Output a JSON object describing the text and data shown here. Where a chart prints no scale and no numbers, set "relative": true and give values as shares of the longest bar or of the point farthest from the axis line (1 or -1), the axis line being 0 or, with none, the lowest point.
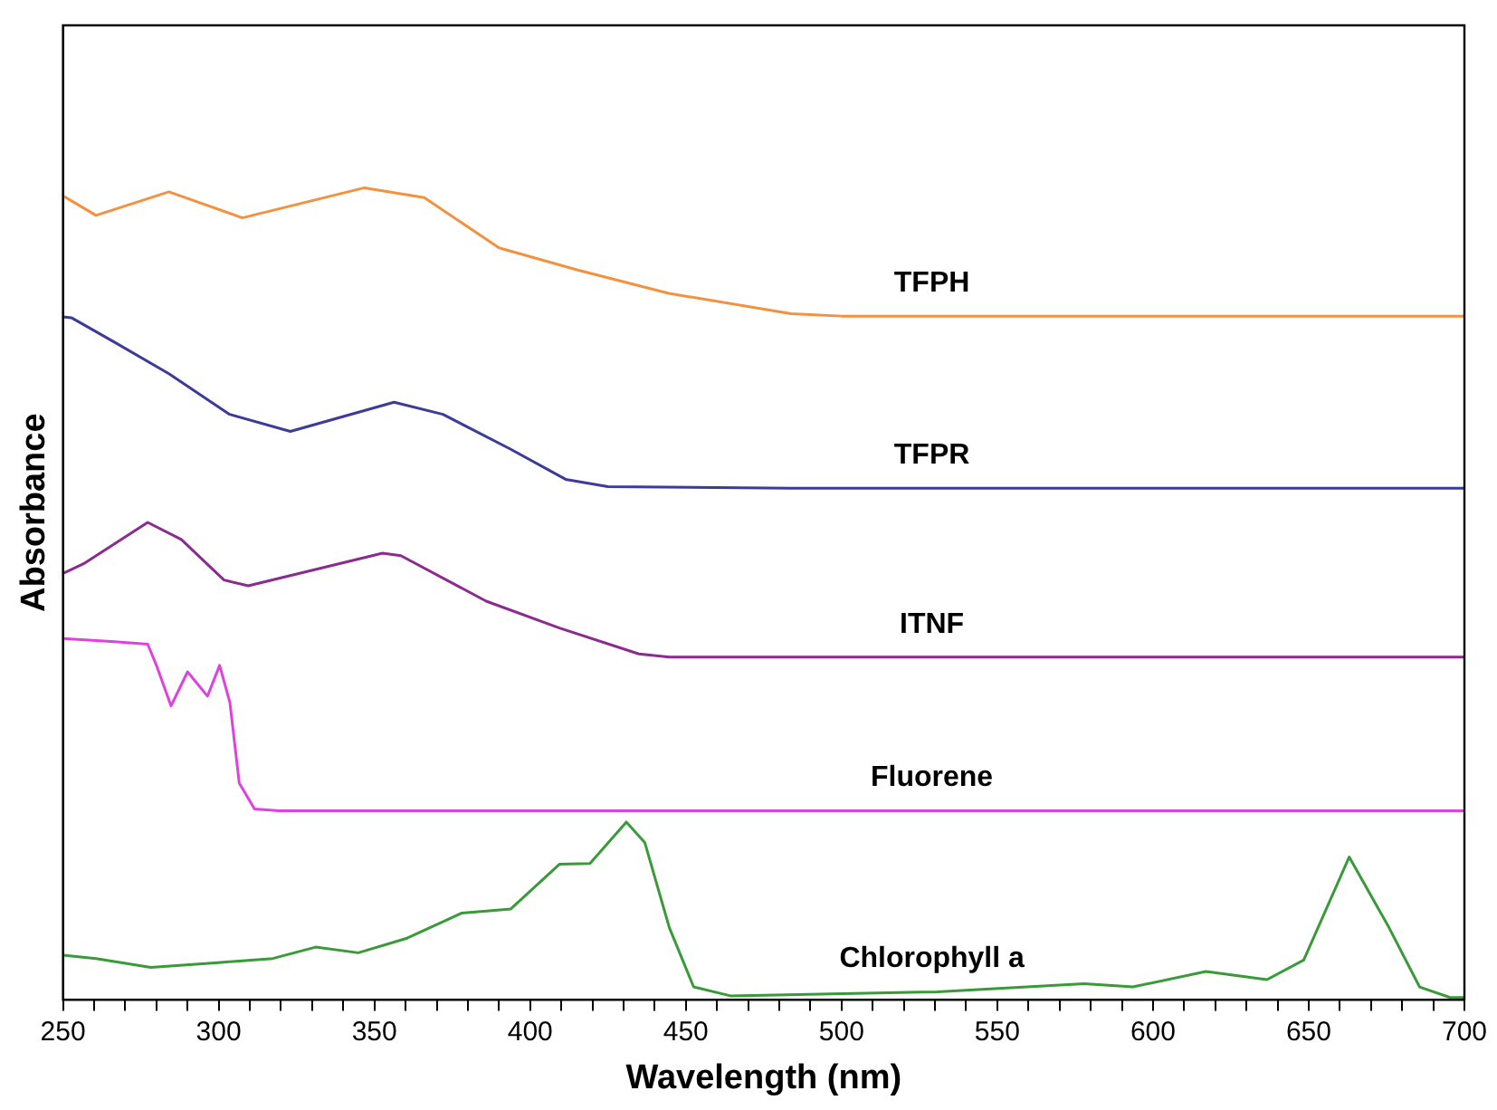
{
  "chart_data": {
    "type": "line",
    "relative": true,
    "xlabel": "Wavelength (nm)",
    "ylabel": "Absorbance",
    "xlim": [
      250,
      700
    ],
    "xticks": [
      250,
      {
        "value": 260,
        "label": null
      },
      {
        "value": 270,
        "label": null
      },
      {
        "value": 280,
        "label": null
      },
      {
        "value": 290,
        "label": null
      },
      300,
      {
        "value": 310,
        "label": null
      },
      {
        "value": 320,
        "label": null
      },
      {
        "value": 330,
        "label": null
      },
      {
        "value": 340,
        "label": null
      },
      350,
      {
        "value": 360,
        "label": null
      },
      {
        "value": 370,
        "label": null
      },
      {
        "value": 380,
        "label": null
      },
      {
        "value": 390,
        "label": null
      },
      400,
      {
        "value": 410,
        "label": null
      },
      {
        "value": 420,
        "label": null
      },
      {
        "value": 430,
        "label": null
      },
      {
        "value": 440,
        "label": null
      },
      450,
      {
        "value": 460,
        "label": null
      },
      {
        "value": 470,
        "label": null
      },
      {
        "value": 480,
        "label": null
      },
      {
        "value": 490,
        "label": null
      },
      500,
      {
        "value": 510,
        "label": null
      },
      {
        "value": 520,
        "label": null
      },
      {
        "value": 530,
        "label": null
      },
      {
        "value": 540,
        "label": null
      },
      550,
      {
        "value": 560,
        "label": null
      },
      {
        "value": 570,
        "label": null
      },
      {
        "value": 580,
        "label": null
      },
      {
        "value": 590,
        "label": null
      },
      600,
      {
        "value": 610,
        "label": null
      },
      {
        "value": 620,
        "label": null
      },
      {
        "value": 630,
        "label": null
      },
      {
        "value": 640,
        "label": null
      },
      650,
      {
        "value": 660,
        "label": null
      },
      {
        "value": 670,
        "label": null
      },
      {
        "value": 680,
        "label": null
      },
      {
        "value": 690,
        "label": null
      },
      700
    ],
    "tick_labels": "x",
    "grid": false,
    "legend": false,
    "marker": "none",
    "line_style": "solid",
    "series": [
      {
        "name": "TFPH",
        "color": "#f4913f",
        "x": [
          250,
          260.6,
          284,
          307.6,
          346.8,
          366,
          390,
          415,
          444.5,
          483.8,
          500,
          700
        ],
        "values": [
          0.99,
          0.966,
          0.995,
          0.963,
          1.0,
          0.988,
          0.926,
          0.899,
          0.87,
          0.845,
          0.842,
          0.842
        ]
      },
      {
        "name": "TFPR",
        "color": "#3b3b9a",
        "x": [
          250,
          252.7,
          266.5,
          284,
          303.5,
          323,
          356.3,
          372,
          393.8,
          411.4,
          425,
          483.8,
          700
        ],
        "values": [
          0.841,
          0.84,
          0.81,
          0.771,
          0.721,
          0.7,
          0.736,
          0.721,
          0.678,
          0.641,
          0.632,
          0.63,
          0.63
        ]
      },
      {
        "name": "ITNF",
        "color": "#8b2a8f",
        "x": [
          250,
          256.6,
          277.2,
          288,
          301.7,
          309.5,
          352.6,
          358.5,
          385.9,
          409.4,
          434.9,
          444.7,
          700
        ],
        "values": [
          0.525,
          0.537,
          0.588,
          0.567,
          0.517,
          0.51,
          0.55,
          0.547,
          0.491,
          0.458,
          0.426,
          0.422,
          0.422
        ]
      },
      {
        "name": "Fluorene",
        "color": "#e040e0",
        "x": [
          250,
          266.5,
          277.2,
          280,
          284.7,
          290,
          296.4,
          300.3,
          303.6,
          306.6,
          311.5,
          319.3,
          700
        ],
        "values": [
          0.445,
          0.441,
          0.438,
          0.412,
          0.362,
          0.404,
          0.374,
          0.412,
          0.366,
          0.267,
          0.235,
          0.233,
          0.233
        ]
      },
      {
        "name": "Chlorophyll a",
        "color": "#3a9a3a",
        "x": [
          250,
          260.6,
          278.2,
          299.8,
          317.4,
          331.1,
          344.8,
          360.5,
          378.1,
          393.8,
          409.4,
          419.2,
          430.9,
          436.8,
          444.7,
          452.5,
          464.3,
          530.8,
          577.9,
          593.5,
          617,
          636.6,
          648.4,
          663,
          675.8,
          685.6,
          695.4,
          700
        ],
        "values": [
          0.055,
          0.051,
          0.04,
          0.046,
          0.051,
          0.065,
          0.058,
          0.076,
          0.107,
          0.112,
          0.167,
          0.168,
          0.219,
          0.194,
          0.089,
          0.016,
          0.005,
          0.01,
          0.02,
          0.016,
          0.035,
          0.025,
          0.049,
          0.176,
          0.089,
          0.016,
          0.003,
          0.003
        ]
      }
    ]
  }
}
